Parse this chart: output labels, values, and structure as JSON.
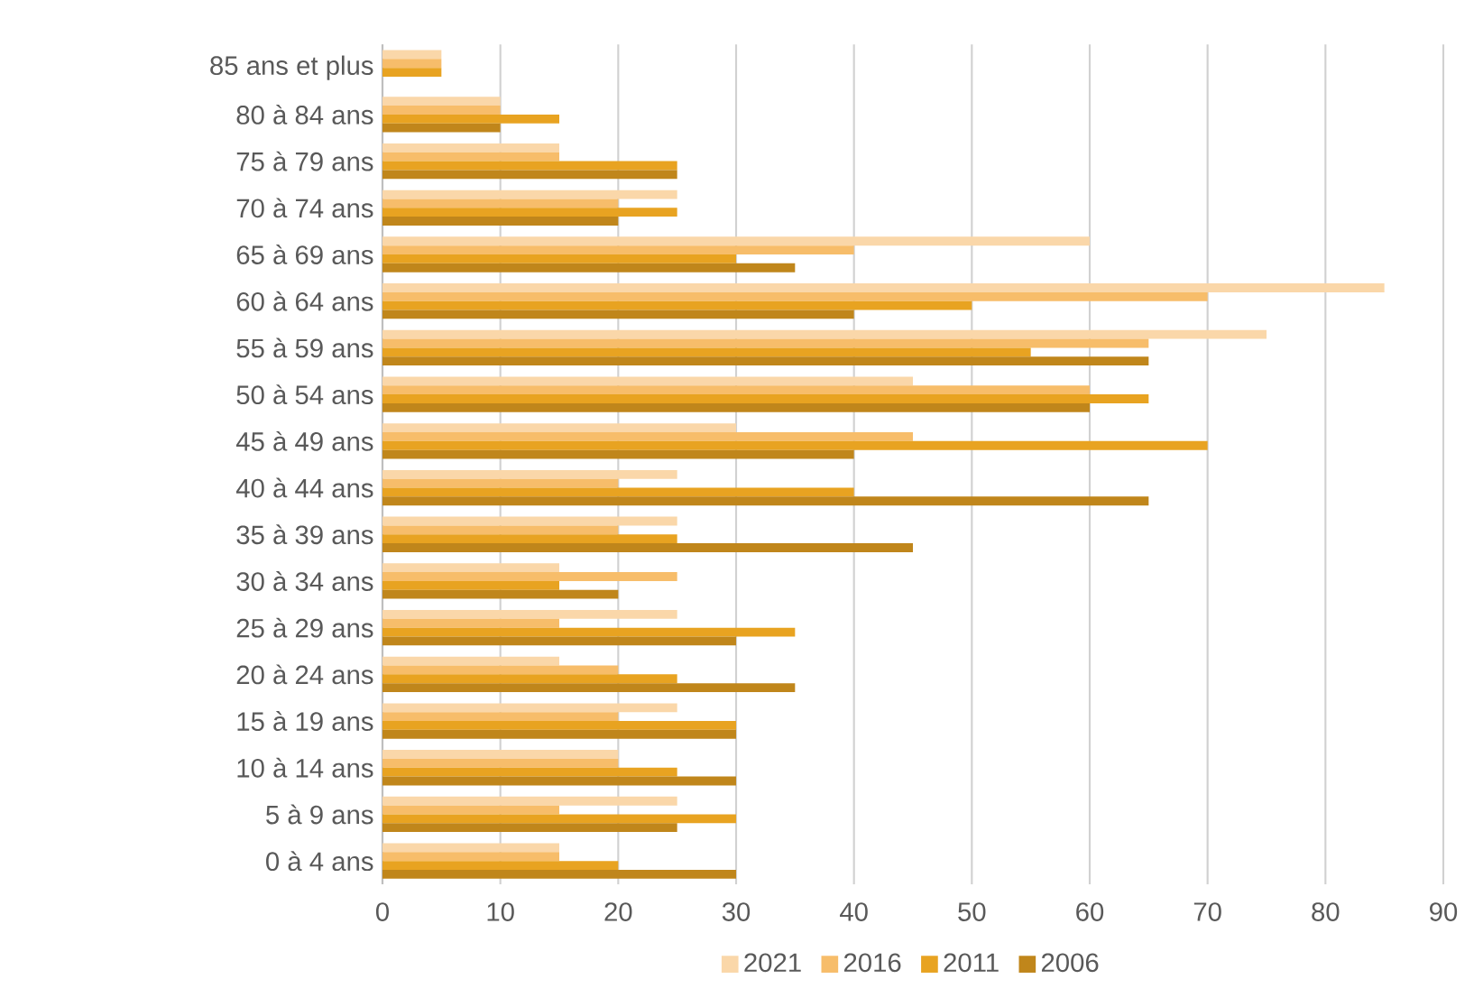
{
  "chart_data": {
    "type": "bar",
    "orientation": "horizontal",
    "categories": [
      "85 ans et plus",
      "80 à 84 ans",
      "75 à 79 ans",
      "70 à 74 ans",
      "65 à 69 ans",
      "60 à 64 ans",
      "55 à 59 ans",
      "50 à 54 ans",
      "45 à 49 ans",
      "40 à 44 ans",
      "35 à 39 ans",
      "30 à 34 ans",
      "25 à 29 ans",
      "20 à 24 ans",
      "15 à 19 ans",
      "10 à 14 ans",
      "5 à 9 ans",
      "0 à 4 ans"
    ],
    "series": [
      {
        "name": "2021",
        "color": "#fad7a9",
        "values": [
          5,
          10,
          15,
          25,
          60,
          85,
          75,
          45,
          30,
          25,
          25,
          15,
          25,
          15,
          25,
          20,
          25,
          15
        ]
      },
      {
        "name": "2016",
        "color": "#f7bd6a",
        "values": [
          5,
          10,
          15,
          20,
          40,
          70,
          65,
          60,
          45,
          20,
          20,
          25,
          15,
          20,
          20,
          20,
          15,
          15
        ]
      },
      {
        "name": "2011",
        "color": "#e8a321",
        "values": [
          5,
          15,
          25,
          25,
          30,
          50,
          55,
          65,
          70,
          40,
          25,
          15,
          35,
          25,
          30,
          25,
          30,
          20
        ]
      },
      {
        "name": "2006",
        "color": "#c0861b",
        "values": [
          0,
          10,
          25,
          20,
          35,
          40,
          65,
          60,
          40,
          65,
          45,
          20,
          30,
          35,
          30,
          30,
          25,
          30
        ]
      }
    ],
    "xlim": [
      0,
      90
    ],
    "xticks": [
      0,
      10,
      20,
      30,
      40,
      50,
      60,
      70,
      80,
      90
    ],
    "grid": "x",
    "legend": "bottom"
  }
}
